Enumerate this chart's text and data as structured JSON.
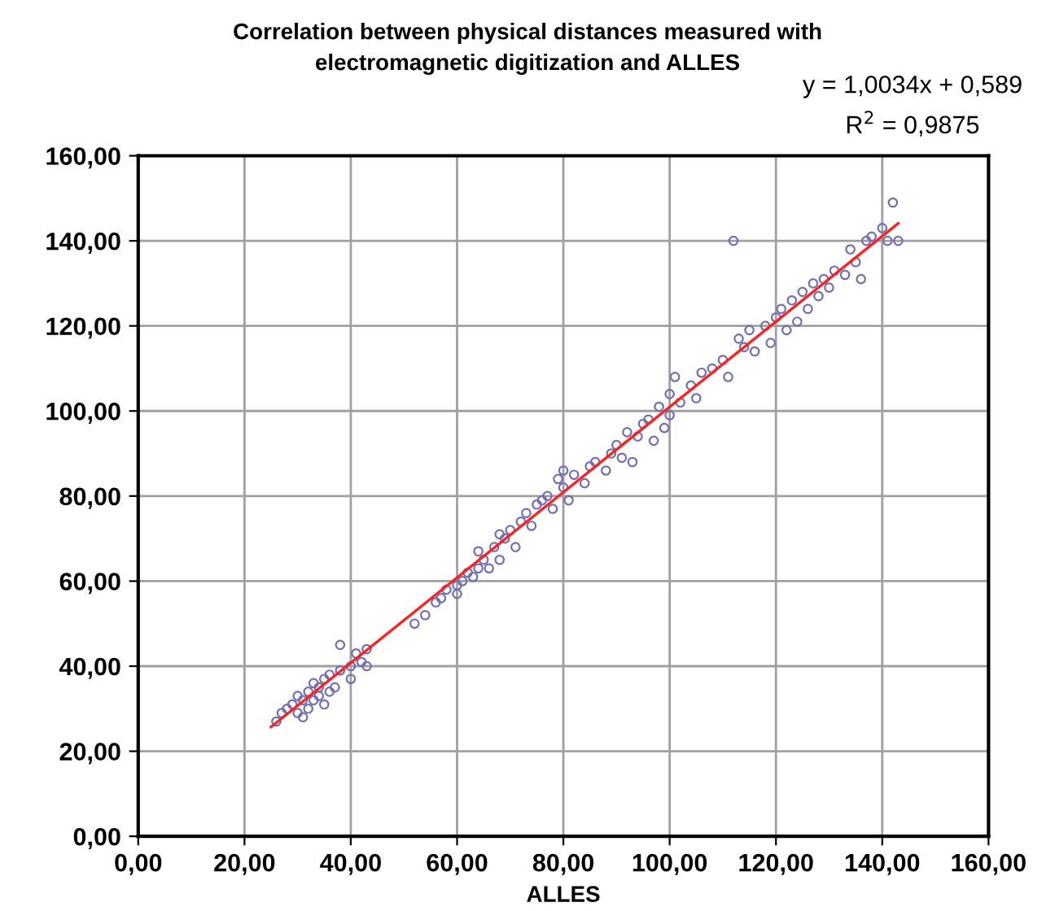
{
  "chart_data": {
    "type": "scatter",
    "title": "Correlation between physical distances measured with\nelectromagnetic digitization and ALLES",
    "xlabel": "ALLES",
    "annotations": [
      "y = 1,0034x + 0,589",
      "R$^{2}$ = 0,9875"
    ],
    "xlim": [
      0,
      160
    ],
    "ylim": [
      0,
      160
    ],
    "xticks": [
      {
        "value": 0,
        "label": "0,00"
      },
      {
        "value": 20,
        "label": "20,00"
      },
      {
        "value": 40,
        "label": "40,00"
      },
      {
        "value": 60,
        "label": "60,00"
      },
      {
        "value": 80,
        "label": "80,00"
      },
      {
        "value": 100,
        "label": "100,00"
      },
      {
        "value": 120,
        "label": "120,00"
      },
      {
        "value": 140,
        "label": "140,00"
      },
      {
        "value": 160,
        "label": "160,00"
      }
    ],
    "yticks": [
      {
        "value": 0,
        "label": "0,00"
      },
      {
        "value": 20,
        "label": "20,00"
      },
      {
        "value": 40,
        "label": "40,00"
      },
      {
        "value": 60,
        "label": "60,00"
      },
      {
        "value": 80,
        "label": "80,00"
      },
      {
        "value": 100,
        "label": "100,00"
      },
      {
        "value": 120,
        "label": "120,00"
      },
      {
        "value": 140,
        "label": "140,00"
      },
      {
        "value": 160,
        "label": "160,00"
      }
    ],
    "grid": true,
    "marker": "circle",
    "series": [
      {
        "color": "#7070b8",
        "x": [
          26,
          27,
          28,
          29,
          30,
          30,
          31,
          31,
          32,
          32,
          33,
          33,
          34,
          34,
          35,
          35,
          36,
          36,
          37,
          38,
          38,
          40,
          40,
          41,
          42,
          43,
          43,
          52,
          54,
          56,
          57,
          58,
          60,
          60,
          61,
          62,
          63,
          64,
          64,
          65,
          66,
          67,
          68,
          68,
          69,
          70,
          71,
          72,
          73,
          74,
          75,
          76,
          77,
          78,
          79,
          80,
          80,
          81,
          82,
          84,
          85,
          86,
          88,
          89,
          90,
          91,
          92,
          93,
          94,
          95,
          96,
          97,
          98,
          99,
          100,
          100,
          101,
          102,
          104,
          105,
          106,
          108,
          110,
          111,
          112,
          113,
          114,
          115,
          116,
          118,
          119,
          120,
          121,
          122,
          123,
          124,
          125,
          126,
          127,
          128,
          129,
          130,
          131,
          133,
          134,
          135,
          136,
          137,
          138,
          140,
          141,
          142,
          143
        ],
        "values": [
          27,
          29,
          30,
          31,
          29,
          33,
          28,
          32,
          30,
          34,
          32,
          36,
          33,
          35,
          31,
          37,
          34,
          38,
          35,
          45,
          39,
          40,
          37,
          43,
          41,
          44,
          40,
          50,
          52,
          55,
          56,
          58,
          59,
          57,
          60,
          62,
          61,
          63,
          67,
          65,
          63,
          68,
          71,
          65,
          70,
          72,
          68,
          74,
          76,
          73,
          78,
          79,
          80,
          77,
          84,
          82,
          86,
          79,
          85,
          83,
          87,
          88,
          86,
          90,
          92,
          89,
          95,
          88,
          94,
          97,
          98,
          93,
          101,
          96,
          104,
          99,
          108,
          102,
          106,
          103,
          109,
          110,
          112,
          108,
          140,
          117,
          115,
          119,
          114,
          120,
          116,
          122,
          124,
          119,
          126,
          121,
          128,
          124,
          130,
          127,
          131,
          129,
          133,
          132,
          138,
          135,
          131,
          140,
          141,
          143,
          140,
          149,
          140
        ]
      },
      {
        "type": "line",
        "color": "#ff2020",
        "marker": "none",
        "x": [
          25,
          143
        ],
        "values": [
          25.7,
          144.1
        ]
      }
    ]
  }
}
